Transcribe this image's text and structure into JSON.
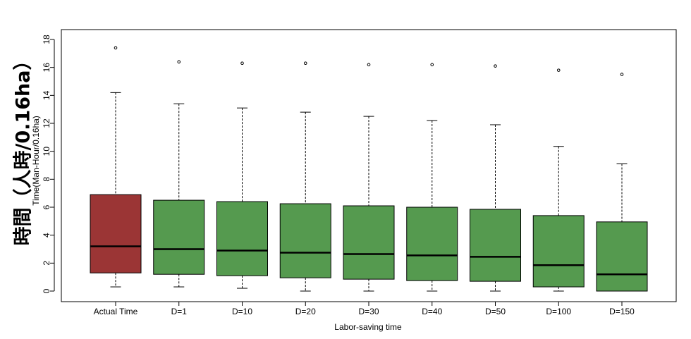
{
  "chart_data": {
    "type": "box",
    "title": "",
    "big_ylabel": "時間（人時/0.16ha）",
    "ylabel": "Time(Man-Hour/0.16ha)",
    "xlabel": "Labor-saving time",
    "ylim": [
      0,
      18
    ],
    "yticks": [
      0,
      2,
      4,
      6,
      8,
      10,
      12,
      14,
      16,
      18
    ],
    "grid": false,
    "colors": {
      "actual": "#9b3535",
      "simulated": "#559a4f"
    },
    "boxes": [
      {
        "label": "Actual Time",
        "whisker_low": 0.3,
        "q1": 1.3,
        "median": 3.2,
        "q3": 6.9,
        "whisker_high": 14.2,
        "outlier": 17.4,
        "color": "#9b3535"
      },
      {
        "label": "D=1",
        "whisker_low": 0.3,
        "q1": 1.2,
        "median": 3.0,
        "q3": 6.5,
        "whisker_high": 13.4,
        "outlier": 16.4,
        "color": "#559a4f"
      },
      {
        "label": "D=10",
        "whisker_low": 0.2,
        "q1": 1.1,
        "median": 2.9,
        "q3": 6.4,
        "whisker_high": 13.1,
        "outlier": 16.3,
        "color": "#559a4f"
      },
      {
        "label": "D=20",
        "whisker_low": 0.0,
        "q1": 0.95,
        "median": 2.75,
        "q3": 6.25,
        "whisker_high": 12.8,
        "outlier": 16.3,
        "color": "#559a4f"
      },
      {
        "label": "D=30",
        "whisker_low": 0.0,
        "q1": 0.85,
        "median": 2.65,
        "q3": 6.1,
        "whisker_high": 12.5,
        "outlier": 16.2,
        "color": "#559a4f"
      },
      {
        "label": "D=40",
        "whisker_low": 0.0,
        "q1": 0.75,
        "median": 2.55,
        "q3": 6.0,
        "whisker_high": 12.2,
        "outlier": 16.2,
        "color": "#559a4f"
      },
      {
        "label": "D=50",
        "whisker_low": 0.0,
        "q1": 0.7,
        "median": 2.45,
        "q3": 5.85,
        "whisker_high": 11.9,
        "outlier": 16.1,
        "color": "#559a4f"
      },
      {
        "label": "D=100",
        "whisker_low": 0.0,
        "q1": 0.3,
        "median": 1.85,
        "q3": 5.4,
        "whisker_high": 10.35,
        "outlier": 15.8,
        "color": "#559a4f"
      },
      {
        "label": "D=150",
        "whisker_low": 0.0,
        "q1": 0.0,
        "median": 1.2,
        "q3": 4.95,
        "whisker_high": 9.1,
        "outlier": 15.5,
        "color": "#559a4f"
      }
    ]
  }
}
